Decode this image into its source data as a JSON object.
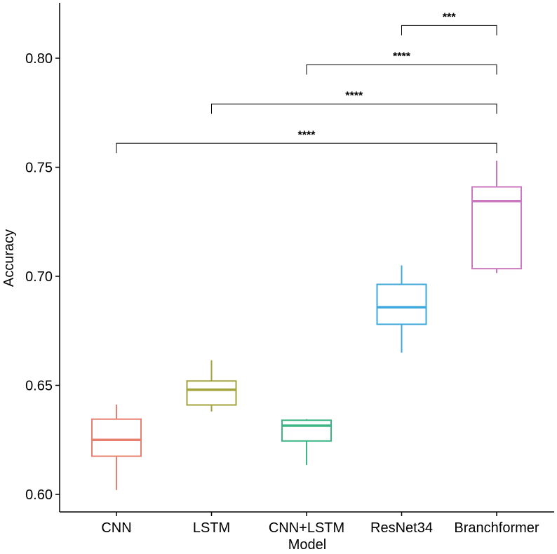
{
  "chart_data": {
    "type": "box",
    "xlabel": "Model",
    "ylabel": "Accuracy",
    "ylim": [
      0.592,
      0.825
    ],
    "y_ticks": [
      0.6,
      0.65,
      0.7,
      0.75,
      0.8
    ],
    "y_tick_labels": [
      "0.60",
      "0.65",
      "0.70",
      "0.75",
      "0.80"
    ],
    "categories": [
      "CNN",
      "LSTM",
      "CNN+LSTM",
      "ResNet34",
      "Branchformer"
    ],
    "boxes": [
      {
        "name": "CNN",
        "min": 0.602,
        "q1": 0.6175,
        "median": 0.625,
        "q3": 0.6345,
        "max": 0.6412,
        "color": "#E8806F"
      },
      {
        "name": "LSTM",
        "min": 0.638,
        "q1": 0.641,
        "median": 0.648,
        "q3": 0.652,
        "max": 0.6615,
        "color": "#A3A33E"
      },
      {
        "name": "CNN+LSTM",
        "min": 0.6135,
        "q1": 0.6245,
        "median": 0.6315,
        "q3": 0.634,
        "max": 0.6345,
        "color": "#3DB585"
      },
      {
        "name": "ResNet34",
        "min": 0.665,
        "q1": 0.678,
        "median": 0.6858,
        "q3": 0.6963,
        "max": 0.705,
        "color": "#3FA8DB"
      },
      {
        "name": "Branchformer",
        "min": 0.7015,
        "q1": 0.7035,
        "median": 0.7345,
        "q3": 0.741,
        "max": 0.753,
        "color": "#CB79BF"
      }
    ],
    "comparisons": [
      {
        "from": "CNN",
        "to": "Branchformer",
        "label": "****",
        "y": 0.761
      },
      {
        "from": "LSTM",
        "to": "Branchformer",
        "label": "****",
        "y": 0.779
      },
      {
        "from": "CNN+LSTM",
        "to": "Branchformer",
        "label": "****",
        "y": 0.797
      },
      {
        "from": "ResNet34",
        "to": "Branchformer",
        "label": "***",
        "y": 0.815
      }
    ],
    "grid": false,
    "legend": "none"
  }
}
